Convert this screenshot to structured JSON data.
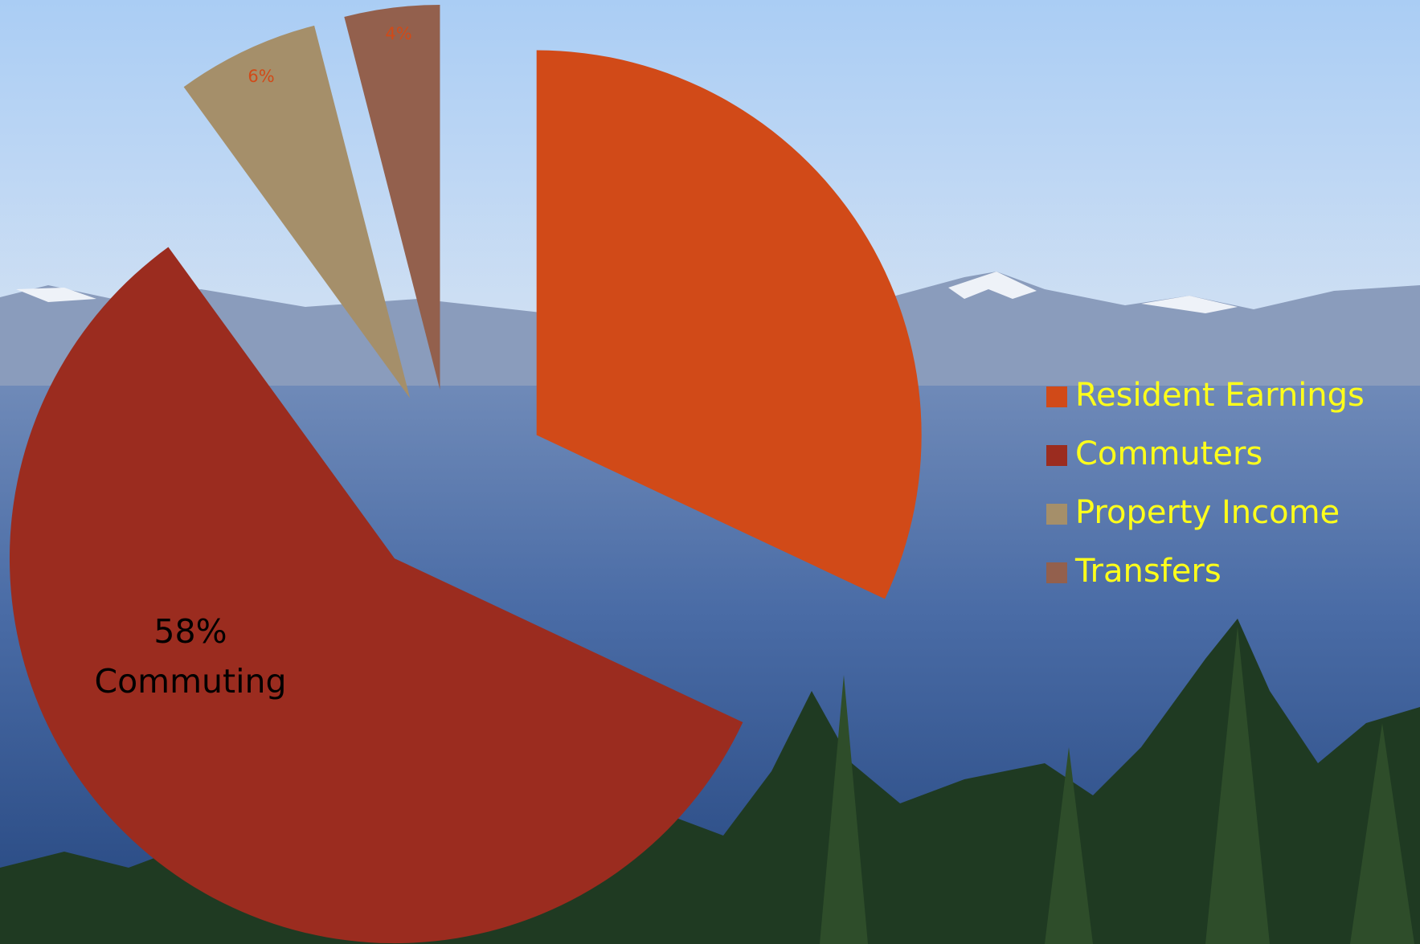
{
  "chart_data": {
    "type": "pie",
    "categories": [
      "Resident Earnings",
      "Commuters",
      "Property Income",
      "Transfers"
    ],
    "values": [
      32,
      58,
      6,
      4
    ],
    "value_labels": [
      null,
      "58%",
      "6%",
      "4%"
    ],
    "annotation": "Commuting",
    "colors": [
      "#d14a18",
      "#9b2c1f",
      "#a58f6a",
      "#93604d"
    ],
    "legend": "right"
  }
}
